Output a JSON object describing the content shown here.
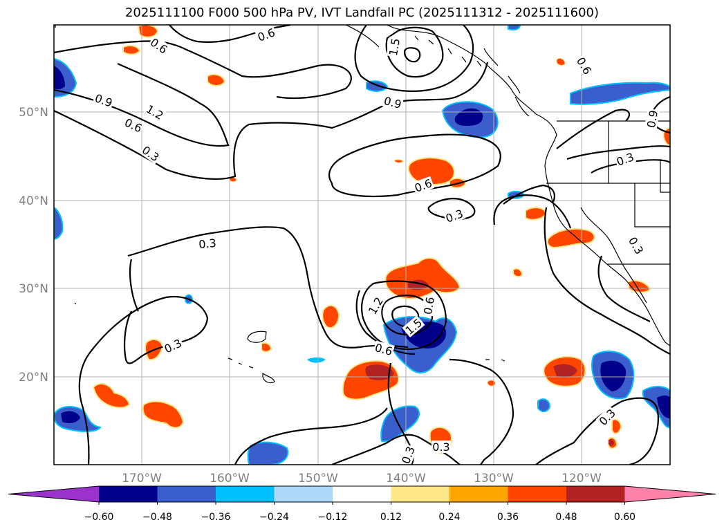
{
  "title": "2025111100 F000 500 hPa PV, IVT Landfall PC (2025111312 - 2025111600)",
  "map": {
    "lon_ticks": [
      "170°W",
      "160°W",
      "150°W",
      "140°W",
      "130°W",
      "120°W"
    ],
    "lat_ticks": [
      "50°N",
      "40°N",
      "30°N",
      "20°N"
    ],
    "contour_labels": [
      "0.6",
      "0.6",
      "1.5",
      "0.9",
      "0.6",
      "0.9",
      "1.2",
      "0.6",
      "0.3",
      "0.3",
      "0.6",
      "0.3",
      "0.9",
      "0.3",
      "0.3",
      "1.2",
      "0.6",
      "0.6",
      "1.5",
      "0.3",
      "0.3",
      "0.3",
      "0.3"
    ]
  },
  "colorbar": {
    "labels": [
      "−0.60",
      "−0.48",
      "−0.36",
      "−0.24",
      "−0.12",
      "0.12",
      "0.24",
      "0.36",
      "0.48",
      "0.60"
    ],
    "colors": [
      "#9933cc",
      "#00008b",
      "#3a5fcd",
      "#00bfff",
      "#add8f7",
      "#ffffff",
      "#ffe88a",
      "#ffa500",
      "#ff4500",
      "#b22222",
      "#ff82ab"
    ]
  }
}
